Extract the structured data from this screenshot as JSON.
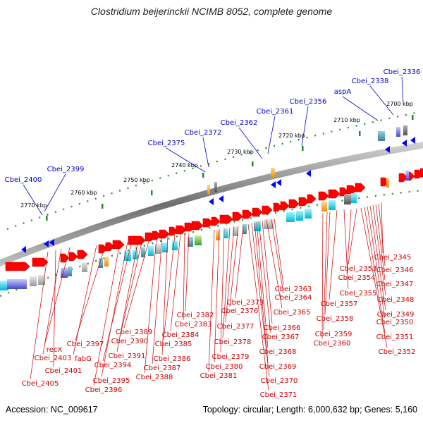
{
  "title": "Clostridium beijerinckii NCIMB 8052, complete genome",
  "footer": {
    "accession": "Accession: NC_009617",
    "info": "Topology: circular; Length: 6,000,632 bp; Genes: 5,160"
  },
  "colors": {
    "forward_gene": "#ff0000",
    "reverse_gene": "#0000ff",
    "forward_label": "#cc0000",
    "reverse_label": "#0000cc",
    "tick": "#228b22",
    "backbone": "#777777"
  },
  "ticks": [
    "2700 kbp",
    "2710 kbp",
    "2720 kbp",
    "2730 kbp",
    "2740 kbp",
    "2750 kbp",
    "2760 kbp",
    "2770 kbp"
  ],
  "top_labels": [
    "Cbei_2336",
    "Cbei_2338",
    "aspA",
    "Cbei_2356",
    "Cbei_2361",
    "Cbei_2362",
    "Cbei_2372",
    "Cbei_2375",
    "Cbei_2399",
    "Cbei_2400"
  ],
  "bottom_labels": [
    "Cbei_2345",
    "Cbei_2346",
    "Cbei_2347",
    "Cbei_2348",
    "Cbei_2349",
    "Cbei_2350",
    "Cbei_2351",
    "Cbei_2352",
    "Cbei_2353",
    "Cbei_2354",
    "Cbei_2355",
    "Cbei_2357",
    "Cbei_2358",
    "Cbei_2359",
    "Cbei_2360",
    "Cbei_2363",
    "Cbei_2364",
    "Cbei_2365",
    "Cbei_2366",
    "Cbei_2367",
    "Cbei_2368",
    "Cbei_2369",
    "Cbei_2370",
    "Cbei_2371",
    "Cbei_2373",
    "Cbei_2376",
    "Cbei_2377",
    "Cbei_2378",
    "Cbei_2379",
    "Cbei_2380",
    "Cbei_2381",
    "Cbei_2382",
    "Cbei_2383",
    "Cbei_2384",
    "Cbei_2385",
    "Cbei_2386",
    "Cbei_2387",
    "Cbei_2388",
    "Cbei_2389",
    "Cbei_2390",
    "Cbei_2391",
    "Cbei_2394",
    "Cbei_2395",
    "Cbei_2396",
    "Cbei_2397",
    "fabG",
    "recX",
    "Cbei_2403",
    "Cbei_2401",
    "Cbei_2405"
  ]
}
